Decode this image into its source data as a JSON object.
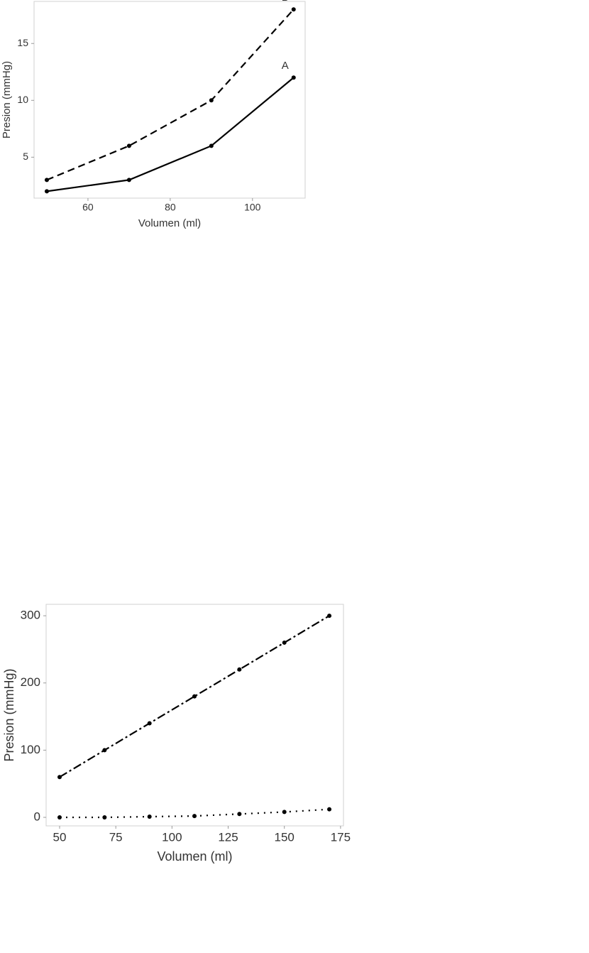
{
  "chart_data": [
    {
      "type": "line",
      "xlabel": "Volumen (ml)",
      "ylabel": "Presion (mmHg)",
      "x": [
        50,
        70,
        90,
        110
      ],
      "series": [
        {
          "name": "A",
          "color": "#000000",
          "linestyle": "solid",
          "values": [
            2,
            3,
            6,
            12
          ]
        },
        {
          "name": "B",
          "color": "#000000",
          "linestyle": "dashed",
          "values": [
            3,
            6,
            10,
            18
          ]
        }
      ],
      "xlim": [
        46.9,
        112.8
      ],
      "xticks": [
        60,
        80,
        100
      ],
      "ylim": [
        1.4,
        18.7
      ],
      "yticks": [
        5,
        10,
        15
      ],
      "grid": false
    },
    {
      "type": "line",
      "xlabel": "Volumen (ml)",
      "ylabel": "Presion (mmHg)",
      "x": [
        50,
        70,
        90,
        110,
        130,
        150,
        170
      ],
      "series": [
        {
          "color": "#000000",
          "linestyle": "dashdot",
          "values": [
            60,
            100,
            140,
            180,
            220,
            260,
            300
          ]
        },
        {
          "color": "#000000",
          "linestyle": "dotted",
          "values": [
            0,
            0,
            1,
            2,
            5,
            8,
            12
          ]
        }
      ],
      "xlim": [
        44,
        176.3
      ],
      "xticks": [
        50,
        75,
        100,
        125,
        150,
        175
      ],
      "ylim": [
        -12.7,
        317
      ],
      "yticks": [
        0,
        100,
        200,
        300
      ],
      "grid": false
    }
  ]
}
